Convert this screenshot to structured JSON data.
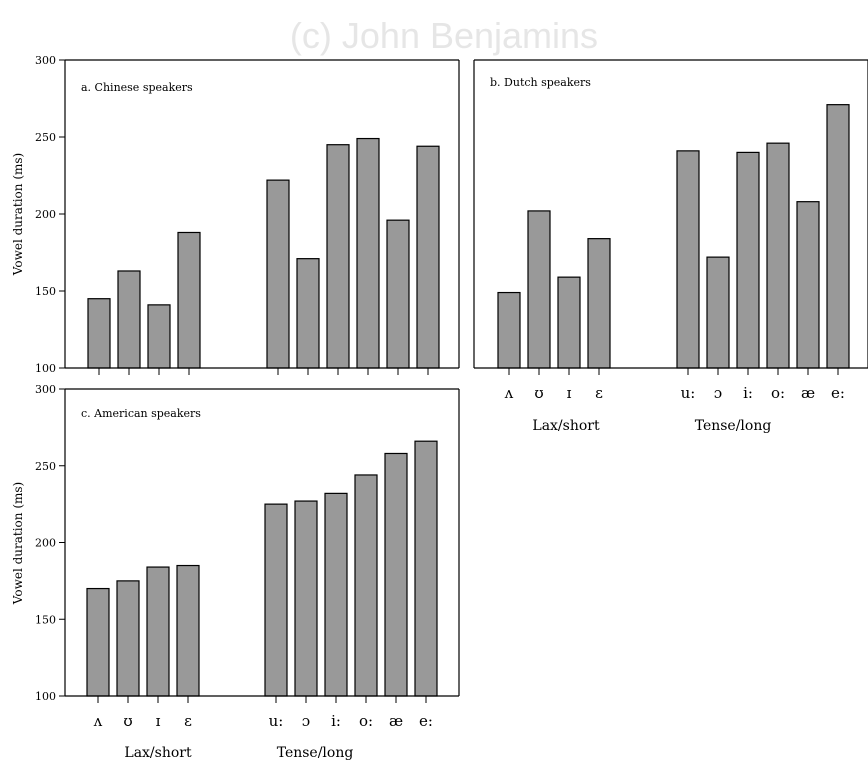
{
  "watermark": "(c) John Benjamins",
  "y_axis_label": "Vowel duration (ms)",
  "group_labels": [
    "Lax/short",
    "Tense/long"
  ],
  "chart_data": [
    {
      "type": "bar",
      "title": "a. Chinese speakers",
      "categories": [
        "ʌ",
        "ʊ",
        "ɪ",
        "ɛ",
        "u:",
        "ɔ",
        "i:",
        "o:",
        "æ",
        "e:"
      ],
      "values": [
        145,
        163,
        141,
        188,
        222,
        171,
        245,
        249,
        196,
        244
      ],
      "ylabel": "Vowel duration (ms)",
      "ylim": [
        100,
        300
      ],
      "yticks": [
        100,
        150,
        200,
        250,
        300
      ],
      "show_xtick_labels": false,
      "show_group_labels": false
    },
    {
      "type": "bar",
      "title": "b. Dutch speakers",
      "categories": [
        "ʌ",
        "ʊ",
        "ɪ",
        "ɛ",
        "u:",
        "ɔ",
        "i:",
        "o:",
        "æ",
        "e:"
      ],
      "values": [
        149,
        202,
        159,
        184,
        241,
        172,
        240,
        246,
        208,
        271
      ],
      "ylabel": "",
      "ylim": [
        100,
        300
      ],
      "yticks": [],
      "show_xtick_labels": true,
      "show_group_labels": true
    },
    {
      "type": "bar",
      "title": "c. American speakers",
      "categories": [
        "ʌ",
        "ʊ",
        "ɪ",
        "ɛ",
        "u:",
        "ɔ",
        "i:",
        "o:",
        "æ",
        "e:"
      ],
      "values": [
        170,
        175,
        184,
        185,
        225,
        227,
        232,
        244,
        258,
        266
      ],
      "ylabel": "Vowel duration (ms)",
      "ylim": [
        100,
        300
      ],
      "yticks": [
        100,
        150,
        200,
        250,
        300
      ],
      "show_xtick_labels": true,
      "show_group_labels": true
    }
  ]
}
